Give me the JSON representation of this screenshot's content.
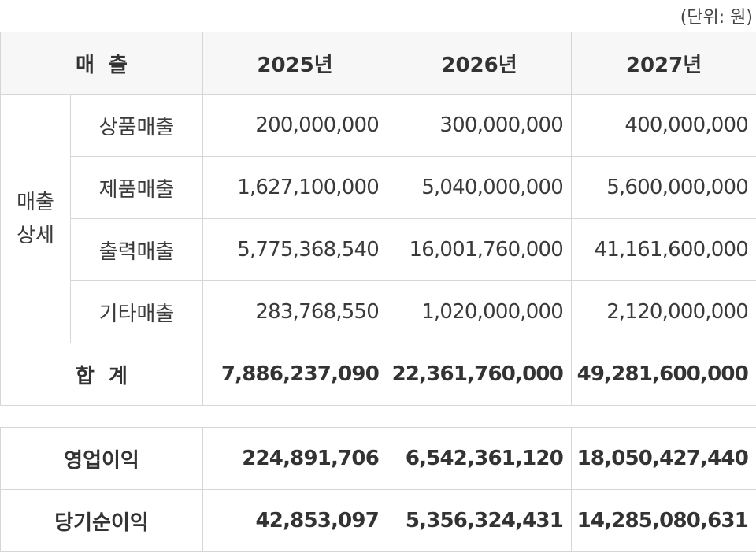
{
  "unit_note": "(단위: 원)",
  "header": {
    "category": "매  출",
    "years": [
      "2025년",
      "2026년",
      "2027년"
    ]
  },
  "group_label_line1": "매출",
  "group_label_line2": "상세",
  "rows": [
    {
      "label": "상품매출",
      "values": [
        "200,000,000",
        "300,000,000",
        "400,000,000"
      ]
    },
    {
      "label": "제품매출",
      "values": [
        "1,627,100,000",
        "5,040,000,000",
        "5,600,000,000"
      ]
    },
    {
      "label": "출력매출",
      "values": [
        "5,775,368,540",
        "16,001,760,000",
        "41,161,600,000"
      ]
    },
    {
      "label": "기타매출",
      "values": [
        "283,768,550",
        "1,020,000,000",
        "2,120,000,000"
      ]
    }
  ],
  "total": {
    "label": "합  계",
    "values": [
      "7,886,237,090",
      "22,361,760,000",
      "49,281,600,000"
    ]
  },
  "profit_rows": [
    {
      "label": "영업이익",
      "values": [
        "224,891,706",
        "6,542,361,120",
        "18,050,427,440"
      ]
    },
    {
      "label": "당기순이익",
      "values": [
        "42,853,097",
        "5,356,324,431",
        "14,285,080,631"
      ]
    }
  ]
}
